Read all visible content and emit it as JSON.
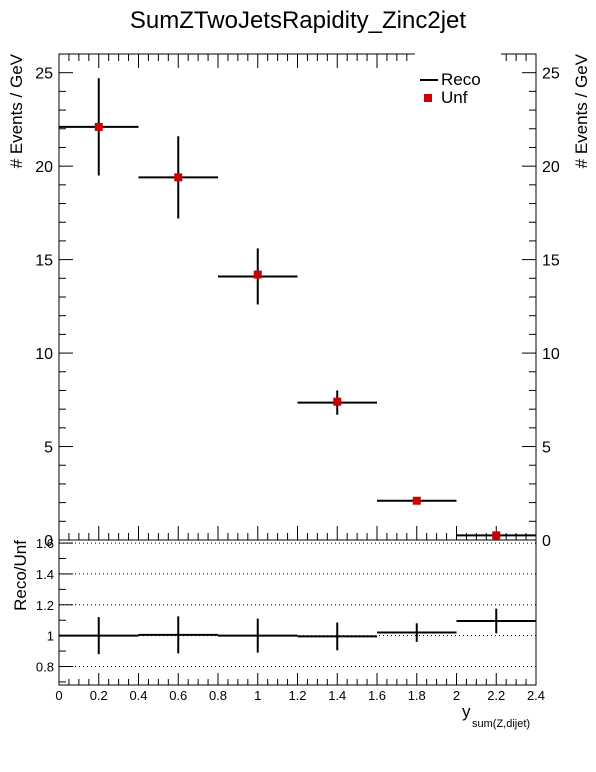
{
  "chart_data": [
    {
      "type": "scatter",
      "title": "SumZTwoJetsRapidity_Zinc2jet",
      "ylabel": "# Events / GeV",
      "ylabel_right": "# Events / GeV",
      "xlim": [
        0,
        2.4
      ],
      "ylim": [
        0,
        26
      ],
      "yticks": [
        0,
        5,
        10,
        15,
        20,
        25
      ],
      "grid": false,
      "legend_position": "top-right",
      "series": [
        {
          "name": "Reco",
          "style": "crosses",
          "color": "#000000",
          "x": [
            0.2,
            0.6,
            1.0,
            1.4,
            1.8,
            2.2
          ],
          "xerr": [
            0.2,
            0.2,
            0.2,
            0.2,
            0.2,
            0.2
          ],
          "y": [
            22.1,
            19.4,
            14.1,
            7.35,
            2.1,
            0.25
          ],
          "yerr": [
            2.6,
            2.2,
            1.5,
            0.65,
            0.15,
            0.05
          ]
        },
        {
          "name": "Unf",
          "style": "markers",
          "color": "#cc0000",
          "x": [
            0.2,
            0.6,
            1.0,
            1.4,
            1.8,
            2.2
          ],
          "y": [
            22.1,
            19.4,
            14.2,
            7.4,
            2.1,
            0.25
          ]
        }
      ]
    },
    {
      "type": "scatter",
      "xlabel": "y",
      "xlabel_subscript": "sum(Z,dijet)",
      "ylabel": "Reco/Unf",
      "xlim": [
        0,
        2.4
      ],
      "ylim": [
        0.68,
        1.62
      ],
      "xticks": [
        "0",
        "0.2",
        "0.4",
        "0.6",
        "0.8",
        "1",
        "1.2",
        "1.4",
        "1.6",
        "1.8",
        "2",
        "2.2",
        "2.4"
      ],
      "yticks": [
        "0.8",
        "1",
        "1.2",
        "1.4",
        "1.6"
      ],
      "gridlines_y": [
        0.8,
        1.0,
        1.2,
        1.4,
        1.6
      ],
      "grid": "dotted horizontal",
      "series": [
        {
          "name": "Reco/Unf",
          "style": "crosses",
          "color": "#000000",
          "x": [
            0.2,
            0.6,
            1.0,
            1.4,
            1.8,
            2.2
          ],
          "xerr": [
            0.2,
            0.2,
            0.2,
            0.2,
            0.2,
            0.2
          ],
          "y": [
            1.0,
            1.005,
            1.0,
            0.995,
            1.02,
            1.095
          ],
          "yerr": [
            0.12,
            0.12,
            0.11,
            0.09,
            0.06,
            0.08
          ]
        }
      ]
    }
  ]
}
